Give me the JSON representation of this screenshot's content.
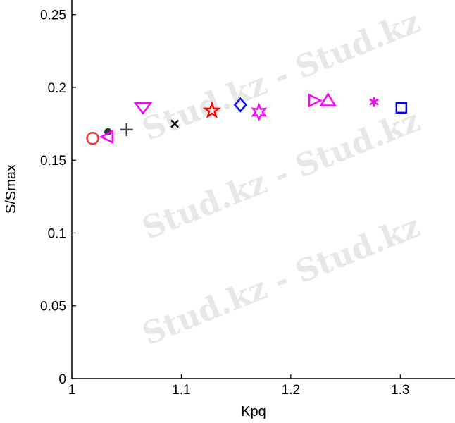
{
  "watermark": "Stud.kz - Stud.kz",
  "chart_data": {
    "type": "scatter",
    "title": "",
    "xlabel": "Kpq",
    "ylabel": "S/Smax",
    "xlim": [
      1,
      1.35
    ],
    "ylim": [
      0,
      0.26
    ],
    "xticks": [
      "1",
      "1.1",
      "1.2",
      "1.3"
    ],
    "yticks": [
      "0",
      "0.05",
      "0.1",
      "0.15",
      "0.2",
      "0.25"
    ],
    "grid": false,
    "points": [
      {
        "x": 1.019,
        "y": 0.165,
        "marker": "circle",
        "color": "#ff3333"
      },
      {
        "x": 1.033,
        "y": 0.169,
        "marker": "dot",
        "color": "#333333"
      },
      {
        "x": 1.032,
        "y": 0.166,
        "marker": "triangle-left",
        "color": "#ff00ff"
      },
      {
        "x": 1.05,
        "y": 0.171,
        "marker": "plus",
        "color": "#444444"
      },
      {
        "x": 1.065,
        "y": 0.186,
        "marker": "triangle-down",
        "color": "#ff00ff"
      },
      {
        "x": 1.094,
        "y": 0.175,
        "marker": "x",
        "color": "#000000"
      },
      {
        "x": 1.128,
        "y": 0.184,
        "marker": "pentagram",
        "color": "#ff0000"
      },
      {
        "x": 1.154,
        "y": 0.188,
        "marker": "diamond",
        "color": "#0000ff"
      },
      {
        "x": 1.171,
        "y": 0.183,
        "marker": "hexagram",
        "color": "#ff00ff"
      },
      {
        "x": 1.222,
        "y": 0.191,
        "marker": "triangle-right",
        "color": "#ff00ff"
      },
      {
        "x": 1.234,
        "y": 0.191,
        "marker": "triangle-up",
        "color": "#ff00ff"
      },
      {
        "x": 1.276,
        "y": 0.19,
        "marker": "asterisk",
        "color": "#ff00ff"
      },
      {
        "x": 1.301,
        "y": 0.186,
        "marker": "square",
        "color": "#0000ff"
      }
    ]
  }
}
